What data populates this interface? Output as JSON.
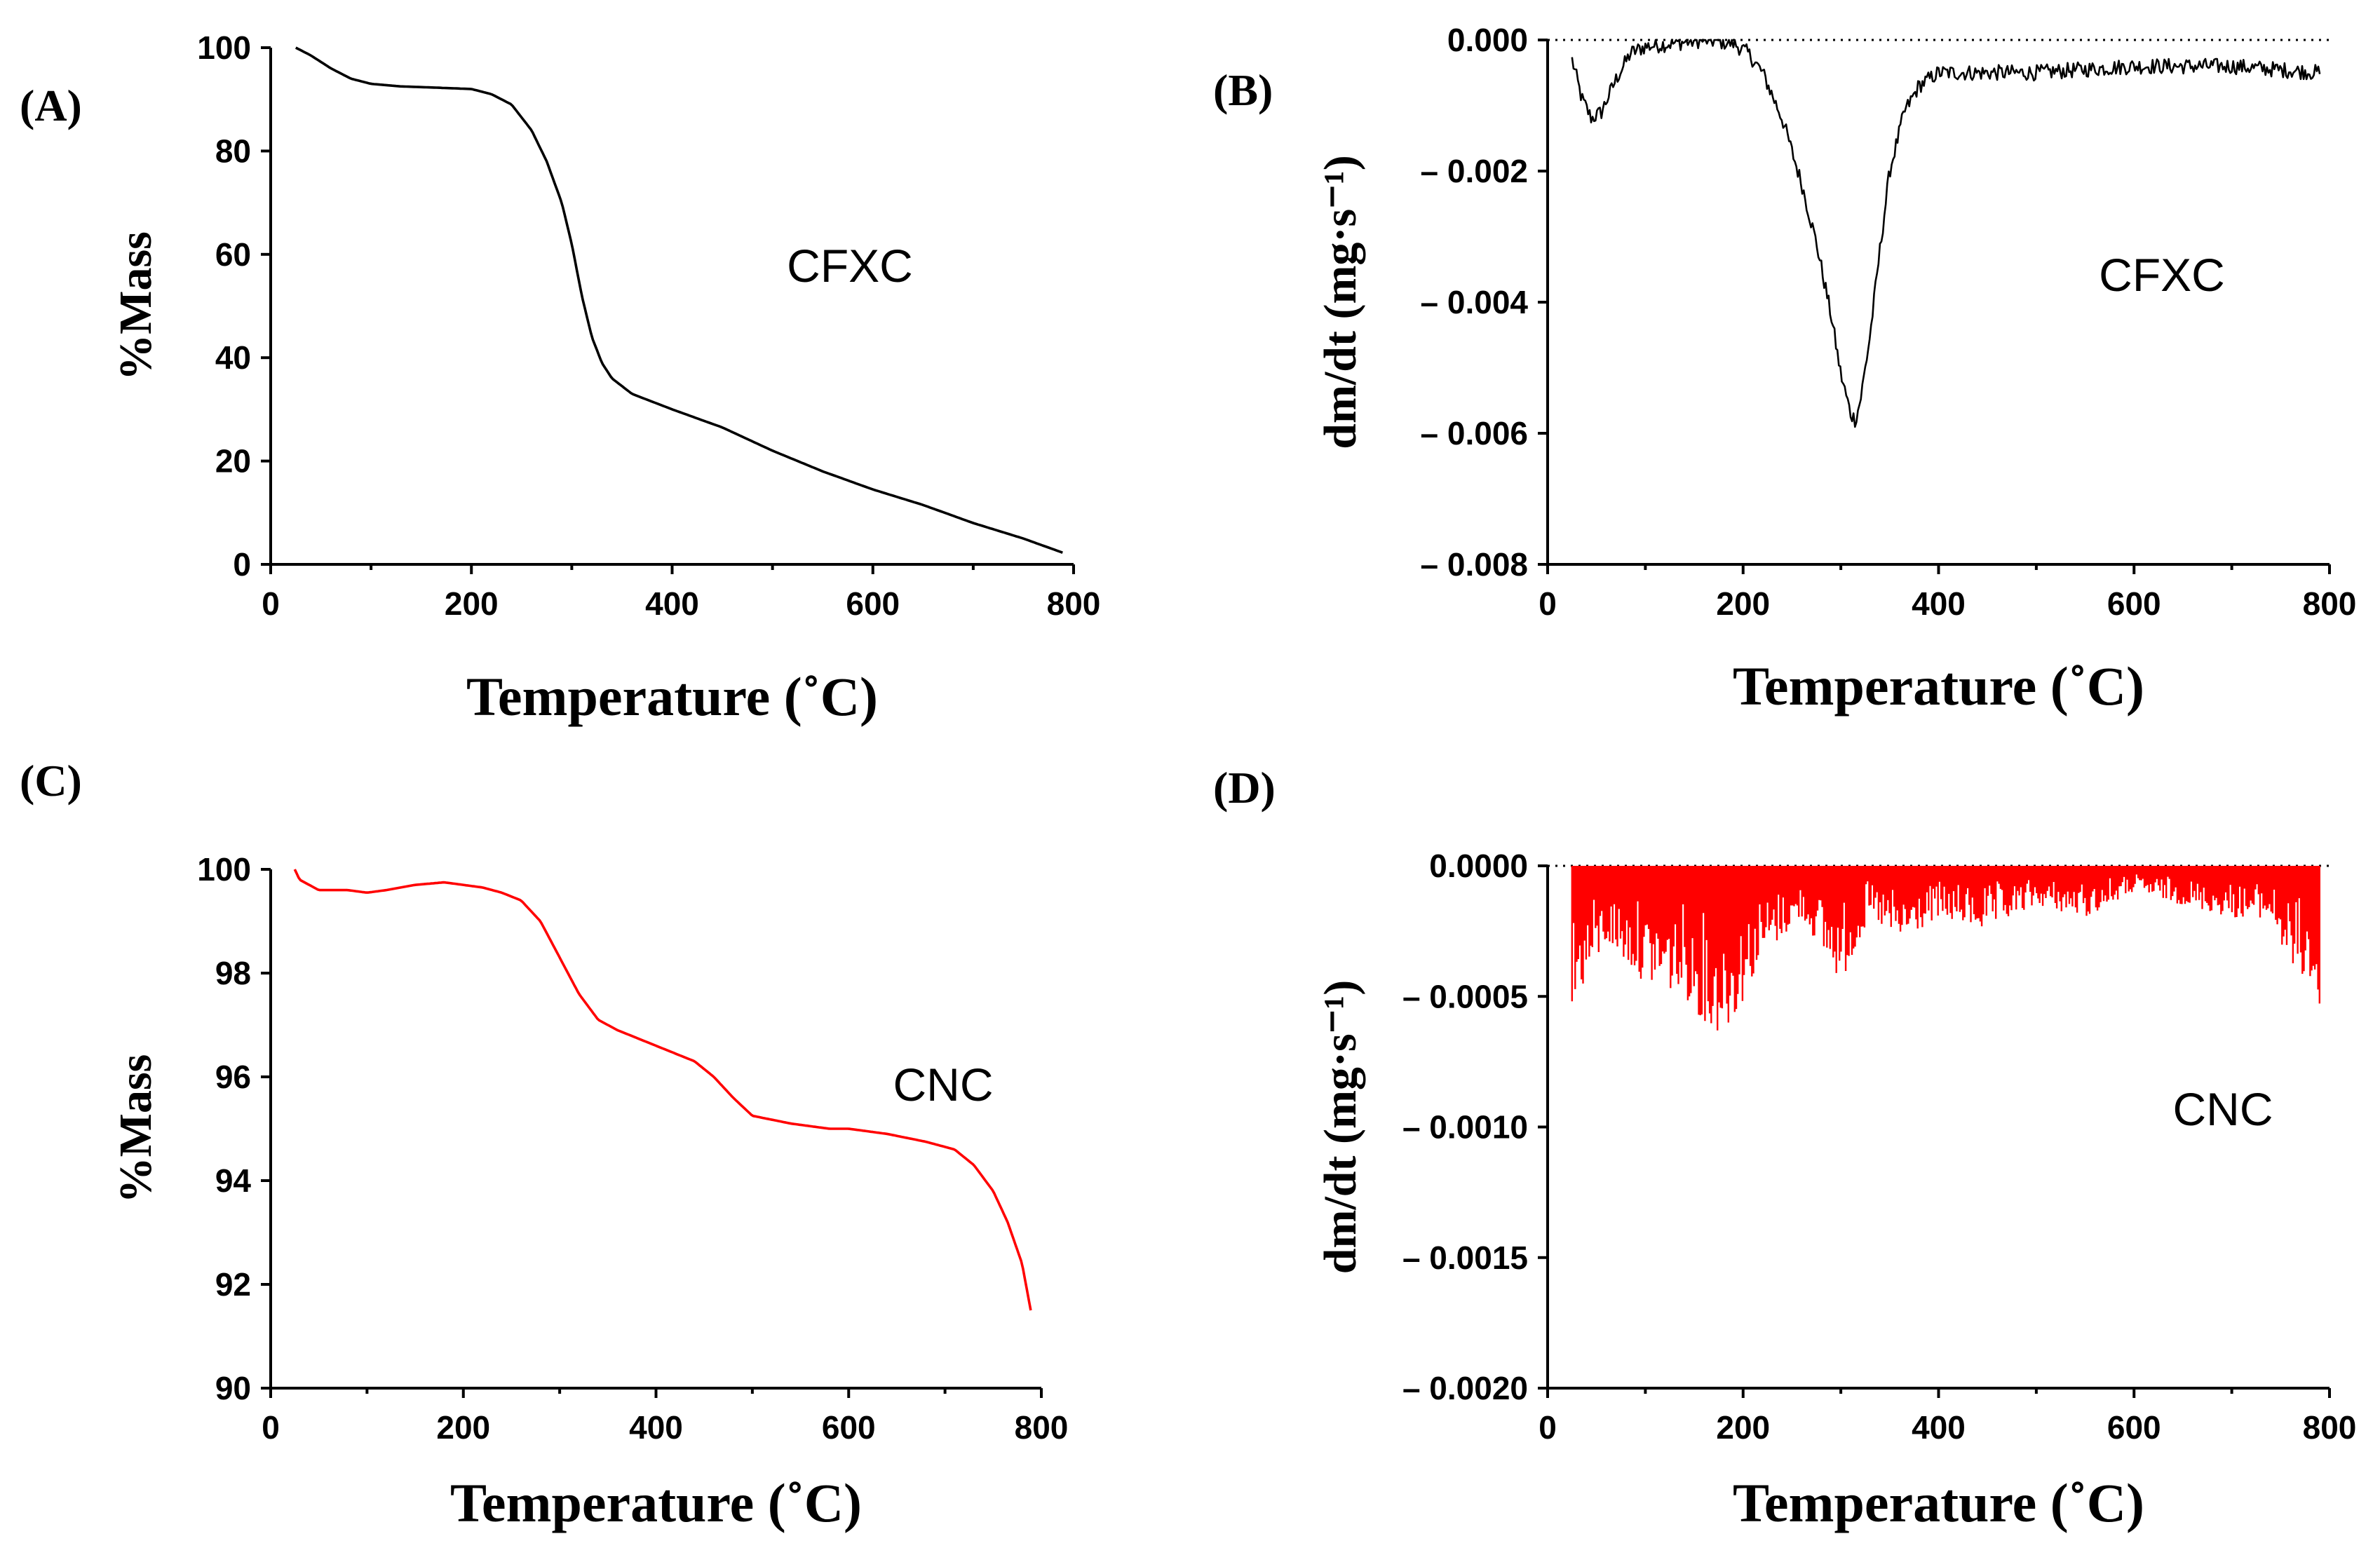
{
  "chart_data": [
    {
      "id": "A",
      "panel_label": "(A)",
      "type": "line",
      "title": "",
      "xlabel": "Temperature (˚C)",
      "ylabel": "%Mass",
      "annotation": "CFXC",
      "xlim": [
        0,
        800
      ],
      "ylim": [
        0,
        100
      ],
      "xticks": [
        0,
        200,
        400,
        600,
        800
      ],
      "yticks": [
        0,
        20,
        40,
        60,
        80,
        100
      ],
      "ytick_labels": [
        "0",
        "20",
        "40",
        "60",
        "80",
        "100"
      ],
      "color": "#000000",
      "zero_line": false,
      "series": [
        {
          "name": "CFXC",
          "x": [
            25,
            40,
            60,
            80,
            100,
            130,
            160,
            200,
            220,
            240,
            260,
            275,
            290,
            300,
            310,
            320,
            330,
            340,
            360,
            400,
            450,
            500,
            550,
            600,
            650,
            700,
            750,
            790
          ],
          "y": [
            100,
            98.5,
            96,
            94,
            93,
            92.5,
            92.3,
            92,
            91,
            89,
            84,
            78,
            70,
            62,
            52,
            44,
            39,
            36,
            33,
            30,
            26.5,
            22,
            18,
            14.5,
            11.5,
            8,
            5,
            2.2
          ]
        }
      ]
    },
    {
      "id": "B",
      "panel_label": "(B)",
      "type": "line",
      "title": "",
      "xlabel": "Temperature (˚C)",
      "ylabel": "dm/dt (mg·s⁻¹)",
      "annotation": "CFXC",
      "xlim": [
        0,
        800
      ],
      "ylim": [
        -0.008,
        0
      ],
      "xticks": [
        0,
        200,
        400,
        600,
        800
      ],
      "yticks": [
        0,
        -0.002,
        -0.004,
        -0.006,
        -0.008
      ],
      "ytick_labels": [
        "0.000",
        "– 0.002",
        "– 0.004",
        "– 0.006",
        "– 0.008"
      ],
      "color": "#000000",
      "zero_line": true,
      "noise": 0.00012,
      "series": [
        {
          "name": "CFXC",
          "x": [
            25,
            35,
            45,
            55,
            70,
            85,
            100,
            130,
            160,
            190,
            205,
            220,
            240,
            260,
            275,
            290,
            300,
            310,
            315,
            320,
            330,
            340,
            350,
            365,
            380,
            400,
            450,
            500,
            600,
            700,
            790
          ],
          "y": [
            -0.0003,
            -0.0009,
            -0.0012,
            -0.0011,
            -0.0006,
            -0.0002,
            -0.0001,
            -5e-05,
            0,
            -5e-05,
            -0.0002,
            -0.0005,
            -0.0012,
            -0.0022,
            -0.0031,
            -0.0042,
            -0.0051,
            -0.0057,
            -0.0058,
            -0.0055,
            -0.0045,
            -0.0032,
            -0.002,
            -0.0011,
            -0.0007,
            -0.0005,
            -0.0005,
            -0.0005,
            -0.0004,
            -0.0004,
            -0.0005
          ]
        }
      ]
    },
    {
      "id": "C",
      "panel_label": "(C)",
      "type": "line",
      "title": "",
      "xlabel": "Temperature (˚C)",
      "ylabel": "%Mass",
      "annotation": "CNC",
      "xlim": [
        0,
        800
      ],
      "ylim": [
        90,
        100
      ],
      "xticks": [
        0,
        200,
        400,
        600,
        800
      ],
      "yticks": [
        90,
        92,
        94,
        96,
        98,
        100
      ],
      "ytick_labels": [
        "90",
        "92",
        "94",
        "96",
        "98",
        "100"
      ],
      "color": "#ff0000",
      "zero_line": false,
      "series": [
        {
          "name": "CNC",
          "x": [
            25,
            30,
            40,
            50,
            80,
            100,
            120,
            150,
            180,
            200,
            220,
            240,
            260,
            280,
            300,
            320,
            340,
            360,
            400,
            440,
            460,
            480,
            500,
            540,
            580,
            600,
            640,
            680,
            710,
            730,
            750,
            765,
            780,
            790
          ],
          "y": [
            100,
            99.8,
            99.7,
            99.6,
            99.6,
            99.55,
            99.6,
            99.7,
            99.75,
            99.7,
            99.65,
            99.55,
            99.4,
            99.0,
            98.3,
            97.6,
            97.1,
            96.9,
            96.6,
            96.3,
            96.0,
            95.6,
            95.25,
            95.1,
            95.0,
            95.0,
            94.9,
            94.75,
            94.6,
            94.3,
            93.8,
            93.2,
            92.4,
            91.4
          ]
        }
      ]
    },
    {
      "id": "D",
      "panel_label": "(D)",
      "type": "line",
      "title": "",
      "xlabel": "Temperature (˚C)",
      "ylabel": "dm/dt (mg·s⁻¹)",
      "annotation": "CNC",
      "xlim": [
        0,
        800
      ],
      "ylim": [
        -0.002,
        0
      ],
      "xticks": [
        0,
        200,
        400,
        600,
        800
      ],
      "yticks": [
        0,
        -0.0005,
        -0.001,
        -0.0015,
        -0.002
      ],
      "ytick_labels": [
        "0.0000",
        "– 0.0005",
        "– 0.0010",
        "– 0.0015",
        "– 0.0020"
      ],
      "color": "#ff0000",
      "zero_line": true,
      "spiky": true,
      "series": [
        {
          "name": "CNC",
          "x": [
            25,
            60,
            100,
            140,
            170,
            190,
            220,
            260,
            300,
            330,
            360,
            400,
            450,
            500,
            550,
            600,
            650,
            700,
            740,
            760,
            780,
            790
          ],
          "y": [
            -0.00055,
            -0.0003,
            -0.00045,
            -0.0005,
            -0.00065,
            -0.0006,
            -0.00035,
            -0.0002,
            -0.00045,
            -0.0002,
            -0.0003,
            -0.0002,
            -0.00025,
            -0.00015,
            -0.0002,
            -0.0001,
            -0.00015,
            -0.0002,
            -0.0002,
            -0.0004,
            -0.00045,
            -0.0006
          ]
        }
      ]
    }
  ]
}
